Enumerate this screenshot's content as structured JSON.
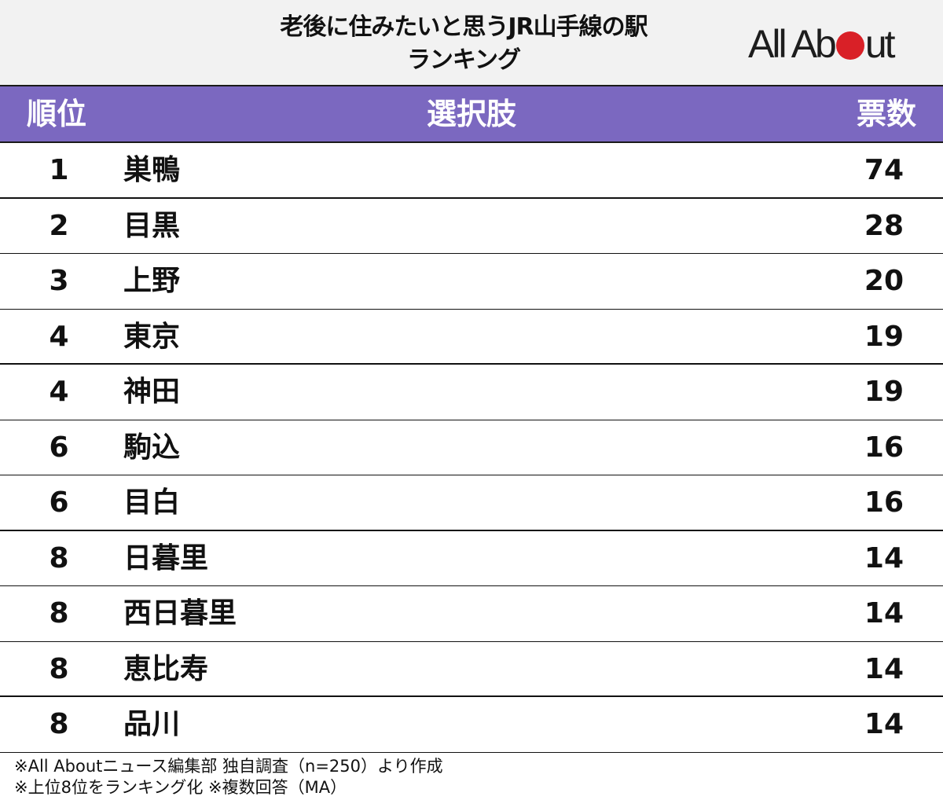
{
  "title": {
    "line1": "老後に住みたいと思うJR山手線の駅",
    "line2": "ランキング"
  },
  "logo": {
    "text_before": "All Ab",
    "text_after": "ut",
    "dot_color": "#d92027"
  },
  "colors": {
    "header_bg": "#7b68c0",
    "title_bg": "#f2f2f2"
  },
  "header": {
    "rank": "順位",
    "choice": "選択肢",
    "votes": "票数"
  },
  "rows": [
    {
      "rank": "1",
      "name": "巣鴨",
      "votes": "74"
    },
    {
      "rank": "2",
      "name": "目黒",
      "votes": "28"
    },
    {
      "rank": "3",
      "name": "上野",
      "votes": "20"
    },
    {
      "rank": "4",
      "name": "東京",
      "votes": "19"
    },
    {
      "rank": "4",
      "name": "神田",
      "votes": "19"
    },
    {
      "rank": "6",
      "name": "駒込",
      "votes": "16"
    },
    {
      "rank": "6",
      "name": "目白",
      "votes": "16"
    },
    {
      "rank": "8",
      "name": "日暮里",
      "votes": "14"
    },
    {
      "rank": "8",
      "name": "西日暮里",
      "votes": "14"
    },
    {
      "rank": "8",
      "name": "恵比寿",
      "votes": "14"
    },
    {
      "rank": "8",
      "name": "品川",
      "votes": "14"
    }
  ],
  "footer": {
    "line1": "※All Aboutニュース編集部 独自調査（n=250）より作成",
    "line2": "※上位8位をランキング化 ※複数回答（MA）"
  },
  "chart_data": {
    "type": "table",
    "title": "老後に住みたいと思うJR山手線の駅ランキング",
    "columns": [
      "順位",
      "選択肢",
      "票数"
    ],
    "categories": [
      "巣鴨",
      "目黒",
      "上野",
      "東京",
      "神田",
      "駒込",
      "目白",
      "日暮里",
      "西日暮里",
      "恵比寿",
      "品川"
    ],
    "ranks": [
      1,
      2,
      3,
      4,
      4,
      6,
      6,
      8,
      8,
      8,
      8
    ],
    "values": [
      74,
      28,
      20,
      19,
      19,
      16,
      16,
      14,
      14,
      14,
      14
    ],
    "notes": [
      "※All Aboutニュース編集部 独自調査（n=250）より作成",
      "※上位8位をランキング化 ※複数回答（MA）"
    ]
  }
}
